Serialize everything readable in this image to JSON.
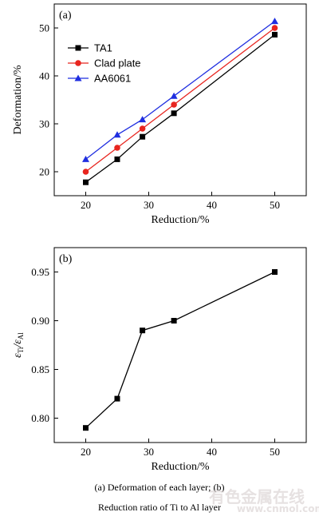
{
  "chart_data": [
    {
      "type": "line",
      "panel_label": "(a)",
      "xlabel": "Reduction/%",
      "ylabel": "Deformation/%",
      "xlim": [
        15,
        55
      ],
      "ylim": [
        15,
        55
      ],
      "xticks": [
        20,
        30,
        40,
        50
      ],
      "yticks": [
        20,
        30,
        40,
        50
      ],
      "grid": false,
      "legend_position": "top-left",
      "x": [
        20,
        25,
        29,
        34,
        50
      ],
      "series": [
        {
          "name": "TA1",
          "marker": "square",
          "color": "#000000",
          "values": [
            17.8,
            22.6,
            27.3,
            32.2,
            48.6
          ]
        },
        {
          "name": "Clad plate",
          "marker": "circle",
          "color": "#e8251f",
          "values": [
            20.0,
            25.0,
            29.0,
            34.0,
            50.0
          ]
        },
        {
          "name": "AA6061",
          "marker": "triangle",
          "color": "#1f2ee0",
          "values": [
            22.6,
            27.7,
            30.9,
            35.8,
            51.4
          ]
        }
      ]
    },
    {
      "type": "line",
      "panel_label": "(b)",
      "xlabel": "Reduction/%",
      "ylabel_main": "ε",
      "ylabel_sub1": "Ti",
      "ylabel_sep": "/ε",
      "ylabel_sub2": "Al",
      "xlim": [
        15,
        55
      ],
      "ylim": [
        0.775,
        0.975
      ],
      "xticks": [
        20,
        30,
        40,
        50
      ],
      "yticks": [
        0.8,
        0.85,
        0.9,
        0.95
      ],
      "ytick_labels": [
        "0.80",
        "0.85",
        "0.90",
        "0.95"
      ],
      "grid": false,
      "x": [
        20,
        25,
        29,
        34,
        50
      ],
      "series": [
        {
          "marker": "square",
          "color": "#000000",
          "values": [
            0.79,
            0.82,
            0.89,
            0.9,
            0.95
          ]
        }
      ]
    }
  ],
  "caption": {
    "line1": "(a)  Deformation  of  each  layer;  (b)",
    "line2": "Reduction ratio of Ti to Al layer"
  },
  "watermark": {
    "text_cn": "有色金属在线",
    "text_url": "www.cnmol.com"
  }
}
